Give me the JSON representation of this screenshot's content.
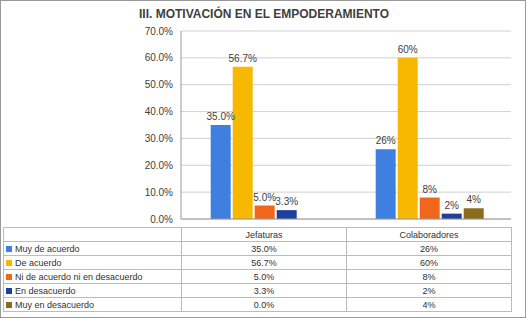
{
  "chart_data": {
    "type": "bar",
    "title": "III.  MOTIVACIÓN EN EL EMPODERAMIENTO",
    "categories": [
      "Jefaturas",
      "Colaboradores"
    ],
    "series": [
      {
        "name": "Muy de acuerdo",
        "color": "#3f7fe0",
        "values": [
          35.0,
          26
        ],
        "value_labels": [
          "35.0%",
          "26%"
        ]
      },
      {
        "name": "De acuerdo",
        "color": "#f6b800",
        "values": [
          56.7,
          60
        ],
        "value_labels": [
          "56.7%",
          "60%"
        ]
      },
      {
        "name": "Ni de acuerdo ni en desacuerdo",
        "color": "#f0661a",
        "values": [
          5.0,
          8
        ],
        "value_labels": [
          "5.0%",
          "8%"
        ]
      },
      {
        "name": "En desacuerdo",
        "color": "#1f3f9e",
        "values": [
          3.3,
          2
        ],
        "value_labels": [
          "3.3%",
          "2%"
        ]
      },
      {
        "name": "Muy en desacuerdo",
        "color": "#8a6d1c",
        "values": [
          0.0,
          4
        ],
        "value_labels": [
          "0.0%",
          "4%"
        ]
      }
    ],
    "ylim": [
      0,
      70
    ],
    "yticks": [
      {
        "value": 0,
        "label": "0.0%"
      },
      {
        "value": 10,
        "label": "10.0%"
      },
      {
        "value": 20,
        "label": "20.0%"
      },
      {
        "value": 30,
        "label": "30.0%"
      },
      {
        "value": 40,
        "label": "40.0%"
      },
      {
        "value": 50,
        "label": "50.0%"
      },
      {
        "value": 60,
        "label": "60.0%"
      },
      {
        "value": 70,
        "label": "70.0%"
      }
    ],
    "grid": true,
    "data_labels": true,
    "tick_labels": "y"
  }
}
